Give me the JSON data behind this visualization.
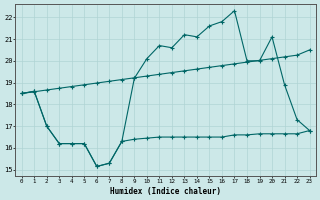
{
  "xlabel": "Humidex (Indice chaleur)",
  "xlim": [
    -0.5,
    23.5
  ],
  "ylim": [
    14.7,
    22.6
  ],
  "xticks": [
    0,
    1,
    2,
    3,
    4,
    5,
    6,
    7,
    8,
    9,
    10,
    11,
    12,
    13,
    14,
    15,
    16,
    17,
    18,
    19,
    20,
    21,
    22,
    23
  ],
  "yticks": [
    15,
    16,
    17,
    18,
    19,
    20,
    21,
    22
  ],
  "bg_color": "#cce8e8",
  "grid_color": "#b0d4d4",
  "line_color": "#006666",
  "line1_x": [
    0,
    1,
    2,
    3,
    4,
    5,
    6,
    7,
    8,
    9,
    10,
    11,
    12,
    13,
    14,
    15,
    16,
    17,
    18,
    19,
    20,
    21,
    22,
    23
  ],
  "line1_y": [
    18.5,
    18.6,
    17.0,
    16.2,
    16.2,
    16.2,
    15.15,
    15.3,
    16.3,
    19.2,
    20.1,
    20.7,
    20.6,
    21.2,
    21.1,
    21.6,
    21.8,
    22.3,
    20.0,
    20.0,
    21.1,
    18.9,
    17.3,
    16.8
  ],
  "line2_x": [
    0,
    1,
    2,
    3,
    4,
    5,
    6,
    7,
    8,
    9,
    10,
    11,
    12,
    13,
    14,
    15,
    16,
    17,
    18,
    19,
    20,
    21,
    22,
    23
  ],
  "line2_y": [
    18.5,
    18.58,
    18.66,
    18.74,
    18.82,
    18.9,
    18.98,
    19.06,
    19.14,
    19.22,
    19.3,
    19.38,
    19.46,
    19.54,
    19.62,
    19.7,
    19.78,
    19.86,
    19.94,
    20.02,
    20.1,
    20.18,
    20.26,
    20.5
  ],
  "line3_x": [
    0,
    1,
    2,
    3,
    4,
    5,
    6,
    7,
    8,
    9,
    10,
    11,
    12,
    13,
    14,
    15,
    16,
    17,
    18,
    19,
    20,
    21,
    22,
    23
  ],
  "line3_y": [
    18.5,
    18.6,
    17.0,
    16.2,
    16.2,
    16.2,
    15.15,
    15.3,
    16.3,
    16.4,
    16.45,
    16.5,
    16.5,
    16.5,
    16.5,
    16.5,
    16.5,
    16.6,
    16.6,
    16.65,
    16.65,
    16.65,
    16.65,
    16.8
  ]
}
